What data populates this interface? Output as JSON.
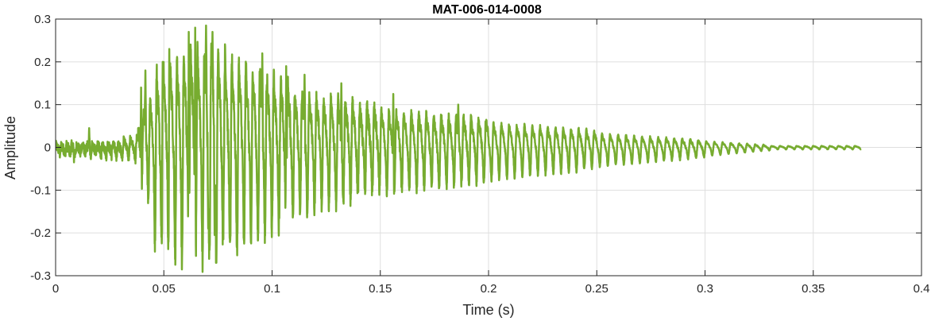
{
  "chart_data": {
    "type": "line",
    "title": "MAT-006-014-0008",
    "xlabel": "Time (s)",
    "ylabel": "Amplitude",
    "xlim": [
      0,
      0.4
    ],
    "ylim": [
      -0.3,
      0.3
    ],
    "x_ticks": [
      0,
      0.05,
      0.1,
      0.15,
      0.2,
      0.25,
      0.3,
      0.35,
      0.4
    ],
    "x_tick_labels": [
      "0",
      "0.05",
      "0.1",
      "0.15",
      "0.2",
      "0.25",
      "0.3",
      "0.35",
      "0.4"
    ],
    "y_ticks": [
      -0.3,
      -0.2,
      -0.1,
      0,
      0.1,
      0.2,
      0.3
    ],
    "y_tick_labels": [
      "-0.3",
      "-0.2",
      "-0.1",
      "0",
      "0.1",
      "0.2",
      "0.3"
    ],
    "grid": true,
    "line_color": "#77AC30",
    "axis_color": "#262626",
    "grid_color": "#dfdfdf",
    "series": [
      {
        "duration": 0.372,
        "segments": [
          {
            "t0": 0.0,
            "t1": 0.03,
            "f0": 420,
            "amp0": 0.01,
            "amp1": 0.015,
            "off": -0.004,
            "noise": 0.012
          },
          {
            "t0": 0.03,
            "t1": 0.038,
            "f0": 330,
            "amp0": 0.02,
            "amp1": 0.03,
            "off": 0,
            "noise": 0.01
          },
          {
            "t0": 0.038,
            "t1": 0.045,
            "f0": 330,
            "amp0": 0.05,
            "amp1": 0.16,
            "off": 0.005,
            "noise": 0.02
          },
          {
            "t0": 0.045,
            "t1": 0.06,
            "f0": 320,
            "amp0": 0.2,
            "amp1": 0.25,
            "off": 0.01,
            "noise": 0.03
          },
          {
            "t0": 0.06,
            "t1": 0.08,
            "f0": 315,
            "amp0": 0.26,
            "amp1": 0.25,
            "off": 0.02,
            "noise": 0.03
          },
          {
            "t0": 0.08,
            "t1": 0.11,
            "f0": 310,
            "amp0": 0.24,
            "amp1": 0.16,
            "off": 0.015,
            "noise": 0.025
          },
          {
            "t0": 0.11,
            "t1": 0.15,
            "f0": 300,
            "amp0": 0.15,
            "amp1": 0.1,
            "off": 0.01,
            "noise": 0.02
          },
          {
            "t0": 0.15,
            "t1": 0.2,
            "f0": 290,
            "amp0": 0.1,
            "amp1": 0.075,
            "off": 0.005,
            "noise": 0.012
          },
          {
            "t0": 0.2,
            "t1": 0.25,
            "f0": 280,
            "amp0": 0.07,
            "amp1": 0.045,
            "off": 0.002,
            "noise": 0.006
          },
          {
            "t0": 0.25,
            "t1": 0.3,
            "f0": 270,
            "amp0": 0.04,
            "amp1": 0.02,
            "off": 0.0,
            "noise": 0.003
          },
          {
            "t0": 0.3,
            "t1": 0.33,
            "f0": 265,
            "amp0": 0.018,
            "amp1": 0.006,
            "off": 0.0,
            "noise": 0.001
          },
          {
            "t0": 0.33,
            "t1": 0.372,
            "f0": 260,
            "amp0": 0.004,
            "amp1": 0.004,
            "off": 0.0,
            "noise": 0.0005
          }
        ],
        "peaks": [
          {
            "t": 0.0395,
            "y": 0.14
          },
          {
            "t": 0.0415,
            "y": 0.18
          },
          {
            "t": 0.0495,
            "y": 0.2
          },
          {
            "t": 0.0525,
            "y": 0.23
          },
          {
            "t": 0.0615,
            "y": 0.27
          },
          {
            "t": 0.0645,
            "y": 0.28
          },
          {
            "t": 0.0695,
            "y": 0.285
          },
          {
            "t": 0.0725,
            "y": 0.27
          },
          {
            "t": 0.0775,
            "y": 0.255
          },
          {
            "t": 0.0735,
            "y": -0.205
          },
          {
            "t": 0.0775,
            "y": -0.215
          },
          {
            "t": 0.0805,
            "y": -0.21
          },
          {
            "t": 0.0705,
            "y": -0.19
          },
          {
            "t": 0.0955,
            "y": 0.22
          },
          {
            "t": 0.1065,
            "y": 0.19
          },
          {
            "t": 0.115,
            "y": 0.17
          },
          {
            "t": 0.132,
            "y": 0.15
          },
          {
            "t": 0.156,
            "y": 0.125
          },
          {
            "t": 0.186,
            "y": 0.1
          },
          {
            "t": 0.0085,
            "y": 0.035
          },
          {
            "t": 0.0155,
            "y": 0.045
          },
          {
            "t": 0.0085,
            "y": -0.035
          }
        ]
      }
    ]
  }
}
